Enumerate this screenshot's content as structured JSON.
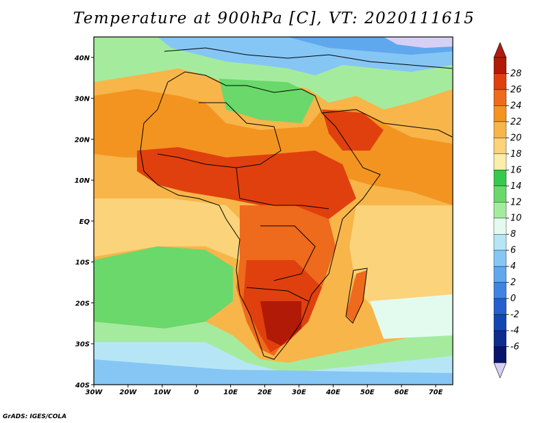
{
  "title": "Temperature at 900hPa [C], VT: 2020111615",
  "credit": "GrADS: IGES/COLA",
  "map": {
    "lon_range": [
      -30,
      75
    ],
    "lat_range": [
      -40,
      45
    ],
    "x_ticks": [
      "30W",
      "20W",
      "10W",
      "0",
      "10E",
      "20E",
      "30E",
      "40E",
      "50E",
      "60E",
      "70E"
    ],
    "y_ticks": [
      "40N",
      "30N",
      "20N",
      "10N",
      "EQ",
      "10S",
      "20S",
      "30S",
      "40S"
    ],
    "variable": "Temperature",
    "level": "900hPa",
    "units": "C",
    "valid_time": "2020111615"
  },
  "colorbar": {
    "labels": [
      "28",
      "26",
      "24",
      "22",
      "20",
      "18",
      "16",
      "14",
      "12",
      "10",
      "8",
      "6",
      "4",
      "2",
      "0",
      "-2",
      "-4",
      "-6"
    ],
    "colors": [
      "#b11a06",
      "#e0400e",
      "#ee6a1c",
      "#f39420",
      "#f7b54a",
      "#fad37a",
      "#fbeeaa",
      "#37c94d",
      "#6ad86a",
      "#a5eb9e",
      "#e3fbef",
      "#b6e6f6",
      "#86c6f4",
      "#5fa8ee",
      "#3f84e2",
      "#2660ce",
      "#1446b0",
      "#0e2d8d",
      "#08146a"
    ],
    "extend_top": "#b01c10",
    "extend_bottom": "#d6d0f5"
  }
}
